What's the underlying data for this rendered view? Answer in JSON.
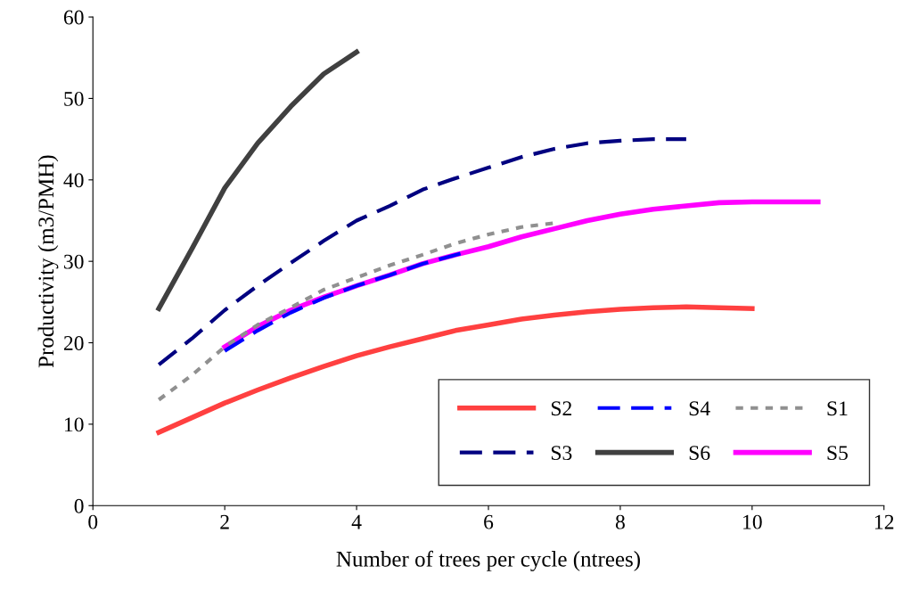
{
  "chart_data": {
    "type": "line",
    "xlabel": "Number of trees per cycle (ntrees)",
    "ylabel": "Productivity (m3/PMH)",
    "xlim": [
      0,
      12
    ],
    "xticks": [
      0,
      2,
      4,
      6,
      8,
      10,
      12
    ],
    "ylim": [
      0,
      60
    ],
    "yticks": [
      0,
      10,
      20,
      30,
      40,
      50,
      60
    ],
    "grid": false,
    "legend": "bottom right",
    "marker": "none",
    "series": [
      {
        "name": "S2",
        "color": "#ff4040",
        "line_style": "solid",
        "x": [
          1,
          1.5,
          2,
          2.5,
          3,
          3.5,
          4,
          4.5,
          5,
          5.5,
          6,
          6.5,
          7,
          7.5,
          8,
          8.5,
          9,
          9.5,
          10
        ],
        "values": [
          9,
          10.8,
          12.6,
          14.2,
          15.7,
          17.1,
          18.4,
          19.5,
          20.5,
          21.5,
          22.2,
          22.9,
          23.4,
          23.8,
          24.1,
          24.3,
          24.4,
          24.3,
          24.2
        ]
      },
      {
        "name": "S4",
        "color": "#0000ff",
        "line_style": "dashed",
        "x": [
          2,
          2.5,
          3,
          3.5,
          4,
          4.5,
          5,
          5.6
        ],
        "values": [
          19,
          21.5,
          23.7,
          25.5,
          27,
          28.3,
          29.7,
          31
        ]
      },
      {
        "name": "S1",
        "color": "#909090",
        "line_style": "dotted",
        "x": [
          1,
          1.5,
          2,
          2.5,
          3,
          3.5,
          4,
          4.5,
          5,
          5.5,
          6,
          6.5,
          7
        ],
        "values": [
          13,
          16,
          19.5,
          22.2,
          24.3,
          26.5,
          28,
          29.5,
          30.8,
          32.2,
          33.3,
          34.2,
          34.7
        ]
      },
      {
        "name": "S3",
        "color": "#000080",
        "line_style": "dashed",
        "x": [
          1,
          1.5,
          2,
          2.5,
          3,
          3.5,
          4,
          4.5,
          5,
          5.5,
          6,
          6.5,
          7,
          7.5,
          8,
          8.5,
          9
        ],
        "values": [
          17.3,
          20.5,
          24,
          27,
          29.8,
          32.5,
          35,
          36.8,
          38.8,
          40.2,
          41.5,
          42.8,
          43.8,
          44.5,
          44.8,
          45,
          45
        ]
      },
      {
        "name": "S6",
        "color": "#404040",
        "line_style": "solid",
        "x": [
          1,
          1.5,
          2,
          2.5,
          3,
          3.5,
          4
        ],
        "values": [
          24.2,
          31.5,
          39,
          44.5,
          49,
          53,
          55.7
        ]
      },
      {
        "name": "S5",
        "color": "#ff00ff",
        "line_style": "solid",
        "x": [
          2,
          2.5,
          3,
          3.5,
          4,
          4.5,
          5,
          5.5,
          6,
          6.5,
          7,
          7.5,
          8,
          8.5,
          9,
          9.5,
          10,
          11
        ],
        "values": [
          19.5,
          22,
          24,
          25.6,
          27,
          28.3,
          29.7,
          30.8,
          31.8,
          33,
          34,
          35,
          35.8,
          36.4,
          36.8,
          37.2,
          37.3,
          37.3
        ]
      }
    ]
  }
}
